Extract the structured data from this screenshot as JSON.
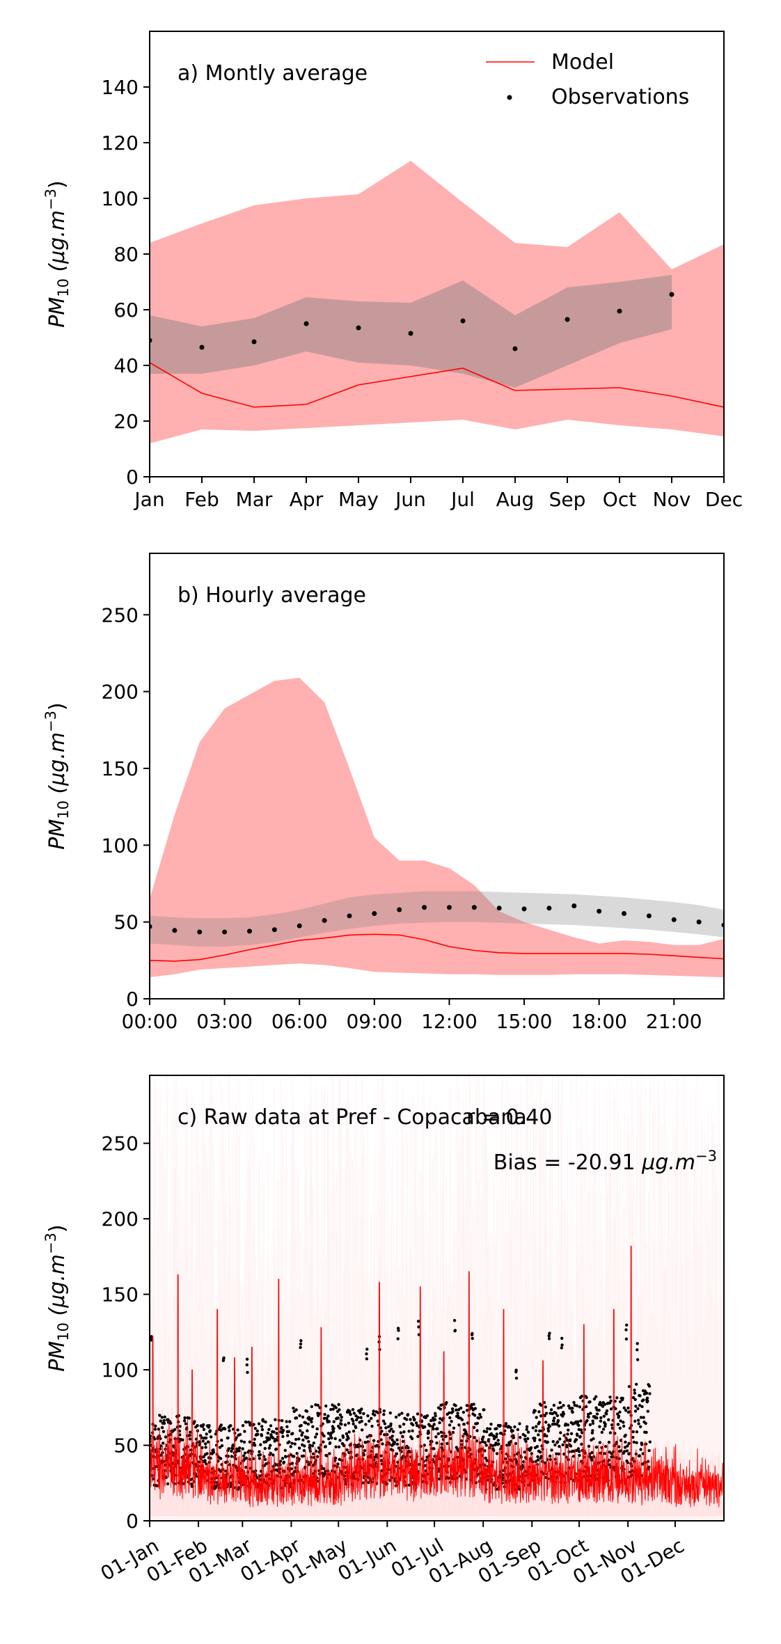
{
  "chart_data": [
    {
      "type": "line",
      "panel": "a",
      "title": "a) Montly average",
      "ylabel_base": "PM",
      "ylabel_sub": "10",
      "ylabel_unit": " (μg.m",
      "ylabel_exp": "−3",
      "ylabel_close": ")",
      "ylim": [
        0,
        160
      ],
      "yticks": [
        0,
        20,
        40,
        60,
        80,
        100,
        120,
        140
      ],
      "xlim": [
        0,
        11
      ],
      "categories": [
        "Jan",
        "Feb",
        "Mar",
        "Apr",
        "May",
        "Jun",
        "Jul",
        "Aug",
        "Sep",
        "Oct",
        "Nov",
        "Dec"
      ],
      "legend": {
        "position": "top-right",
        "entries": [
          "Model",
          "Observations"
        ]
      },
      "grid": false,
      "model_band": {
        "lower": [
          12,
          17,
          16.5,
          17.5,
          18.5,
          19.5,
          20.5,
          17,
          20.5,
          18.5,
          17,
          14.5
        ],
        "upper": [
          84,
          91,
          97.5,
          100,
          101.5,
          113.5,
          98.5,
          84,
          82.5,
          95,
          74.5,
          83.5
        ]
      },
      "model_line": [
        41,
        30,
        25,
        26,
        33,
        36,
        39,
        31,
        31.5,
        32,
        29,
        25
      ],
      "obs_band": {
        "x": [
          0,
          1,
          2,
          3,
          4,
          5,
          6,
          7,
          8,
          9,
          10
        ],
        "lower": [
          37,
          37,
          40,
          45,
          41,
          40,
          37,
          32,
          40,
          48,
          53
        ],
        "upper": [
          58,
          54,
          57,
          64.5,
          63,
          62.5,
          70.5,
          58,
          68,
          70,
          72.5
        ]
      },
      "observations": [
        49,
        46.5,
        48.5,
        55,
        53.5,
        51.5,
        56,
        46,
        56.5,
        59.5,
        65.5
      ]
    },
    {
      "type": "line",
      "panel": "b",
      "title": "b) Hourly average",
      "ylabel_base": "PM",
      "ylabel_sub": "10",
      "ylabel_unit": " (μg.m",
      "ylabel_exp": "−3",
      "ylabel_close": ")",
      "ylim": [
        0,
        290
      ],
      "yticks": [
        0,
        50,
        100,
        150,
        200,
        250
      ],
      "xlim": [
        0,
        23
      ],
      "xticks": [
        0,
        3,
        6,
        9,
        12,
        15,
        18,
        21
      ],
      "xticklabels": [
        "00:00",
        "03:00",
        "06:00",
        "09:00",
        "12:00",
        "15:00",
        "18:00",
        "21:00"
      ],
      "grid": false,
      "model_band": {
        "lower": [
          14,
          16,
          19,
          20,
          21,
          22,
          23,
          22,
          20,
          17.5,
          17,
          16.5,
          16,
          16,
          15.5,
          15.5,
          15.5,
          16,
          16,
          16,
          15.5,
          15,
          14.5,
          14
        ],
        "upper": [
          65,
          120,
          167,
          189,
          198,
          207,
          209,
          193,
          150,
          105,
          90,
          90,
          85,
          74,
          57,
          50,
          45,
          40,
          36,
          38,
          37,
          35,
          35,
          39
        ]
      },
      "model_line": [
        25,
        24.5,
        25.5,
        28.5,
        32,
        35,
        38,
        39.5,
        41.5,
        42,
        41.5,
        38.5,
        34,
        31.5,
        30,
        29.5,
        29.5,
        29.5,
        29.5,
        29.5,
        29,
        28,
        27,
        26
      ],
      "obs_band": {
        "lower": [
          36,
          35,
          34,
          34,
          35,
          37,
          40,
          43,
          45.5,
          47.5,
          49,
          49.5,
          50,
          50,
          49.5,
          49,
          48.5,
          48,
          47,
          46,
          45,
          43.5,
          42,
          40
        ],
        "upper": [
          54,
          53,
          52.5,
          52.5,
          53,
          55,
          58,
          62,
          66,
          68,
          69,
          70,
          70,
          70,
          69.5,
          69,
          68.5,
          68,
          67,
          66,
          64.5,
          63,
          61,
          58
        ]
      },
      "observations": [
        47,
        44.5,
        43.5,
        43.5,
        44,
        45,
        47.5,
        51,
        54,
        55.5,
        58,
        59.5,
        59.5,
        59.5,
        59,
        58.5,
        59,
        60.5,
        57,
        55.5,
        54,
        51.5,
        50,
        48
      ]
    },
    {
      "type": "line",
      "panel": "c",
      "title": "c) Raw data at Pref - Copacabana",
      "ylabel_base": "PM",
      "ylabel_sub": "10",
      "ylabel_unit": " (μg.m",
      "ylabel_exp": "−3",
      "ylabel_close": ")",
      "ylim": [
        0,
        295
      ],
      "yticks": [
        0,
        50,
        100,
        150,
        200,
        250
      ],
      "xlim": [
        0,
        365
      ],
      "xticks": [
        0,
        31,
        59,
        90,
        120,
        151,
        181,
        212,
        243,
        273,
        304,
        334
      ],
      "xticklabels": [
        "01-Jan",
        "01-Feb",
        "01-Mar",
        "01-Apr",
        "01-May",
        "01-Jun",
        "01-Jul",
        "01-Aug",
        "01-Sep",
        "01-Oct",
        "01-Nov",
        "01-Dec"
      ],
      "grid": false,
      "annotations": {
        "r_label": "r = 0.40",
        "bias_text": "Bias = -20.91 ",
        "bias_unit": "μg.m",
        "bias_exp": "−3"
      },
      "observations_end_day": 318,
      "obs_monthly_mean": [
        50,
        46,
        48,
        55,
        53,
        51,
        56,
        46,
        56,
        59,
        65
      ],
      "model_monthly_mean": [
        40,
        30,
        25,
        26,
        33,
        36,
        39,
        31,
        31,
        32,
        29,
        25
      ],
      "model_peaks": [
        {
          "day": 2,
          "value": 122
        },
        {
          "day": 18,
          "value": 163
        },
        {
          "day": 27,
          "value": 100
        },
        {
          "day": 43,
          "value": 140
        },
        {
          "day": 54,
          "value": 108
        },
        {
          "day": 65,
          "value": 115
        },
        {
          "day": 82,
          "value": 160
        },
        {
          "day": 109,
          "value": 128
        },
        {
          "day": 146,
          "value": 158
        },
        {
          "day": 172,
          "value": 155
        },
        {
          "day": 187,
          "value": 112
        },
        {
          "day": 203,
          "value": 165
        },
        {
          "day": 225,
          "value": 140
        },
        {
          "day": 250,
          "value": 106
        },
        {
          "day": 276,
          "value": 130
        },
        {
          "day": 295,
          "value": 140
        },
        {
          "day": 306,
          "value": 182
        }
      ],
      "obs_peaks": [
        {
          "day": 1,
          "value": 123
        },
        {
          "day": 47,
          "value": 110
        },
        {
          "day": 62,
          "value": 108
        },
        {
          "day": 96,
          "value": 121
        },
        {
          "day": 138,
          "value": 118
        },
        {
          "day": 146,
          "value": 125
        },
        {
          "day": 158,
          "value": 133
        },
        {
          "day": 171,
          "value": 135
        },
        {
          "day": 194,
          "value": 135
        },
        {
          "day": 205,
          "value": 128
        },
        {
          "day": 233,
          "value": 100
        },
        {
          "day": 254,
          "value": 128
        },
        {
          "day": 262,
          "value": 125
        },
        {
          "day": 303,
          "value": 133
        },
        {
          "day": 310,
          "value": 118
        }
      ]
    }
  ],
  "colors": {
    "model_line": "#ff0000",
    "model_band": "#ffb0b0",
    "obs_band": "#808080",
    "obs_points": "#000000"
  }
}
